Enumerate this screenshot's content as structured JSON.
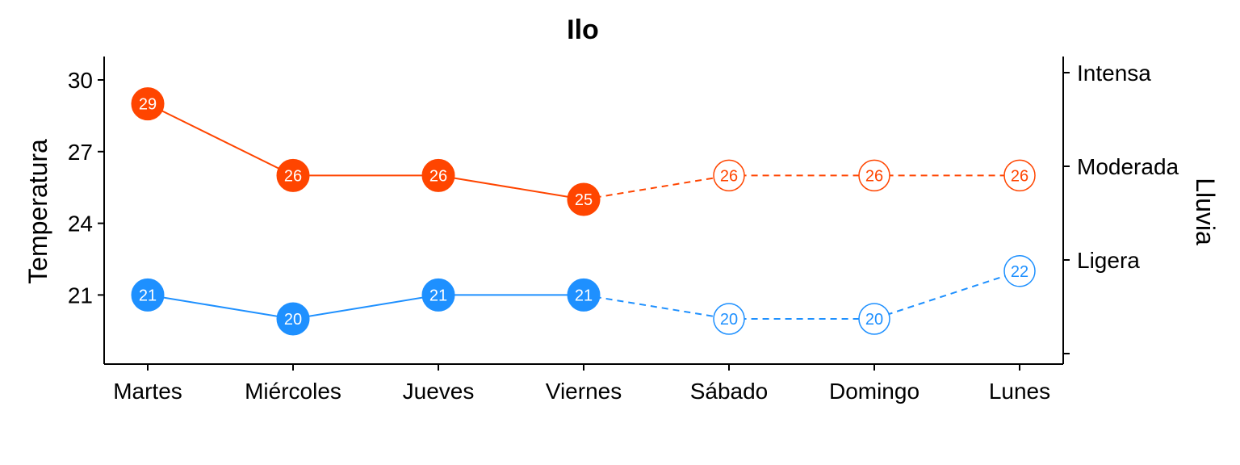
{
  "chart_data": {
    "type": "line",
    "title": "Ilo",
    "ylabel": "Temperatura",
    "y2label": "Lluvia",
    "categories": [
      "Martes",
      "Miércoles",
      "Jueves",
      "Viernes",
      "Sábado",
      "Domingo",
      "Lunes"
    ],
    "ylim": [
      18,
      31
    ],
    "yticks": [
      21,
      24,
      27,
      30
    ],
    "y2_ticks": [
      "",
      "Ligera",
      "Moderada",
      "Intensa"
    ],
    "observed_days": 4,
    "series": [
      {
        "values": [
          29,
          26,
          26,
          25,
          26,
          26,
          26
        ],
        "color": "#ff4500"
      },
      {
        "values": [
          21,
          20,
          21,
          21,
          20,
          20,
          22
        ],
        "color": "#1e90ff"
      }
    ],
    "grid": false,
    "legend": "none"
  }
}
